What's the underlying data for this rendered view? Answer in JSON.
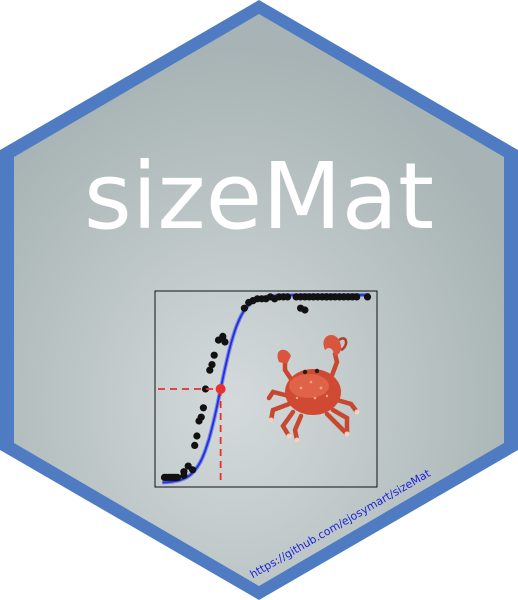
{
  "title": "sizeMat",
  "url": "https://github.com/ejosymart/sizeMat",
  "colors": {
    "hex_border": "#4f7bc2",
    "hex_fill_center": "#d4dadb",
    "hex_fill_edge": "#a7b3b4",
    "title": "#ffffff",
    "url": "#1d24d6",
    "curve": "#1f2fe6",
    "points": "#111111",
    "marker": "#e8302c"
  },
  "icons": {
    "crab": "crab-icon"
  },
  "chart_data": {
    "type": "scatter",
    "title": "",
    "xlabel": "",
    "ylabel": "",
    "xlim": [
      0,
      1
    ],
    "ylim": [
      0,
      1
    ],
    "grid": false,
    "points": [
      [
        0.03,
        0.03
      ],
      [
        0.04,
        0.03
      ],
      [
        0.05,
        0.03
      ],
      [
        0.06,
        0.03
      ],
      [
        0.07,
        0.03
      ],
      [
        0.08,
        0.03
      ],
      [
        0.09,
        0.03
      ],
      [
        0.12,
        0.06
      ],
      [
        0.14,
        0.09
      ],
      [
        0.16,
        0.07
      ],
      [
        0.17,
        0.2
      ],
      [
        0.18,
        0.25
      ],
      [
        0.19,
        0.33
      ],
      [
        0.2,
        0.35
      ],
      [
        0.21,
        0.4
      ],
      [
        0.22,
        0.5
      ],
      [
        0.24,
        0.6
      ],
      [
        0.25,
        0.63
      ],
      [
        0.26,
        0.68
      ],
      [
        0.28,
        0.76
      ],
      [
        0.3,
        0.78
      ],
      [
        0.31,
        0.75
      ],
      [
        0.4,
        0.93
      ],
      [
        0.42,
        0.96
      ],
      [
        0.44,
        0.97
      ],
      [
        0.46,
        0.98
      ],
      [
        0.48,
        0.98
      ],
      [
        0.5,
        0.98
      ],
      [
        0.52,
        0.99
      ],
      [
        0.54,
        0.98
      ],
      [
        0.56,
        0.99
      ],
      [
        0.58,
        0.99
      ],
      [
        0.6,
        0.99
      ],
      [
        0.64,
        0.99
      ],
      [
        0.66,
        0.99
      ],
      [
        0.68,
        0.99
      ],
      [
        0.7,
        0.99
      ],
      [
        0.72,
        0.99
      ],
      [
        0.74,
        0.99
      ],
      [
        0.76,
        0.99
      ],
      [
        0.78,
        0.99
      ],
      [
        0.8,
        0.99
      ],
      [
        0.82,
        0.99
      ],
      [
        0.84,
        0.99
      ],
      [
        0.86,
        0.99
      ],
      [
        0.88,
        0.99
      ],
      [
        0.9,
        0.99
      ],
      [
        0.92,
        0.99
      ],
      [
        0.97,
        0.99
      ],
      [
        0.12,
        0.04
      ],
      [
        0.66,
        0.93
      ],
      [
        0.68,
        0.92
      ],
      [
        0.78,
        0.99
      ]
    ],
    "fit_curve": {
      "model": "logistic",
      "midpoint": 0.29,
      "slope": 22
    },
    "marker_point": [
      0.29,
      0.5
    ]
  }
}
